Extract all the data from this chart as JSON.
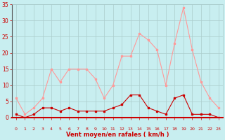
{
  "x": [
    0,
    1,
    2,
    3,
    4,
    5,
    6,
    7,
    8,
    9,
    10,
    11,
    12,
    13,
    14,
    15,
    16,
    17,
    18,
    19,
    20,
    21,
    22,
    23
  ],
  "wind_avg": [
    1,
    0,
    1,
    3,
    3,
    2,
    3,
    2,
    2,
    2,
    2,
    3,
    4,
    7,
    7,
    3,
    2,
    1,
    6,
    7,
    1,
    1,
    1,
    0
  ],
  "wind_gust": [
    6,
    1,
    3,
    6,
    15,
    11,
    15,
    15,
    15,
    12,
    6,
    10,
    19,
    19,
    26,
    24,
    21,
    10,
    23,
    34,
    21,
    11,
    6,
    3
  ],
  "avg_color": "#cc0000",
  "gust_color": "#ff9999",
  "bg_color": "#c8eef0",
  "grid_color": "#aacccc",
  "xlabel": "Vent moyen/en rafales ( km/h )",
  "xlabel_color": "#cc0000",
  "tick_color": "#cc0000",
  "ylim": [
    0,
    35
  ],
  "xlim": [
    -0.5,
    23.5
  ],
  "yticks": [
    0,
    5,
    10,
    15,
    20,
    25,
    30,
    35
  ],
  "xticks": [
    0,
    1,
    2,
    3,
    4,
    5,
    6,
    7,
    8,
    9,
    10,
    11,
    12,
    13,
    14,
    15,
    16,
    17,
    18,
    19,
    20,
    21,
    22,
    23
  ],
  "xtick_labels": [
    "0",
    "1",
    "2",
    "3",
    "4",
    "5",
    "6",
    "7",
    "8",
    "9",
    "10",
    "11",
    "12",
    "13",
    "14",
    "15",
    "16",
    "17",
    "18",
    "19",
    "20",
    "21",
    "22",
    "23"
  ]
}
